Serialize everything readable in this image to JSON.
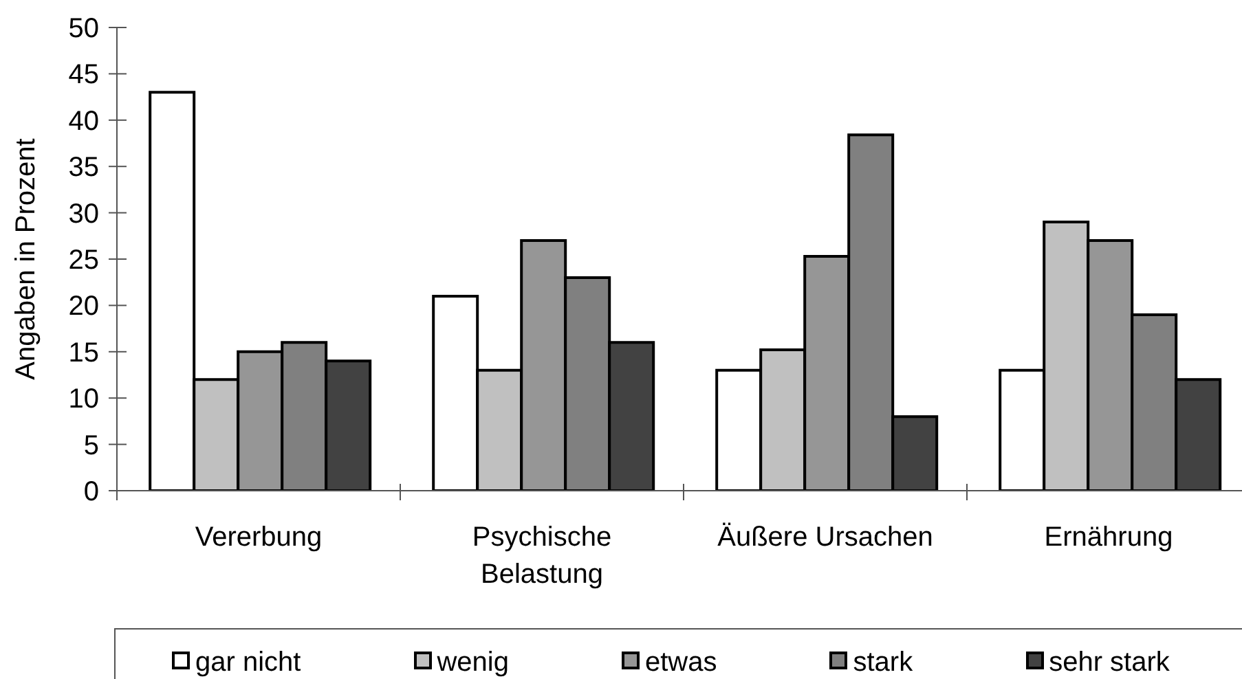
{
  "chart_data": {
    "type": "bar",
    "ylabel": "Angaben in Prozent",
    "categories": [
      "Vererbung",
      "Psychische Belastung",
      "Äußere Ursachen",
      "Ernährung"
    ],
    "series": [
      {
        "name": "gar nicht",
        "color": "#ffffff",
        "values": [
          43,
          21,
          13,
          13
        ]
      },
      {
        "name": "wenig",
        "color": "#c0c0c0",
        "values": [
          12,
          13,
          15.2,
          29
        ]
      },
      {
        "name": "etwas",
        "color": "#969696",
        "values": [
          15,
          27,
          25.3,
          27
        ]
      },
      {
        "name": "stark",
        "color": "#808080",
        "values": [
          16,
          23,
          38.4,
          19
        ]
      },
      {
        "name": "sehr stark",
        "color": "#424242",
        "values": [
          14,
          16,
          8,
          12
        ]
      }
    ],
    "ylim": [
      0,
      50
    ],
    "yticks": [
      0,
      5,
      10,
      15,
      20,
      25,
      30,
      35,
      40,
      45,
      50
    ],
    "legend": "bottom"
  }
}
